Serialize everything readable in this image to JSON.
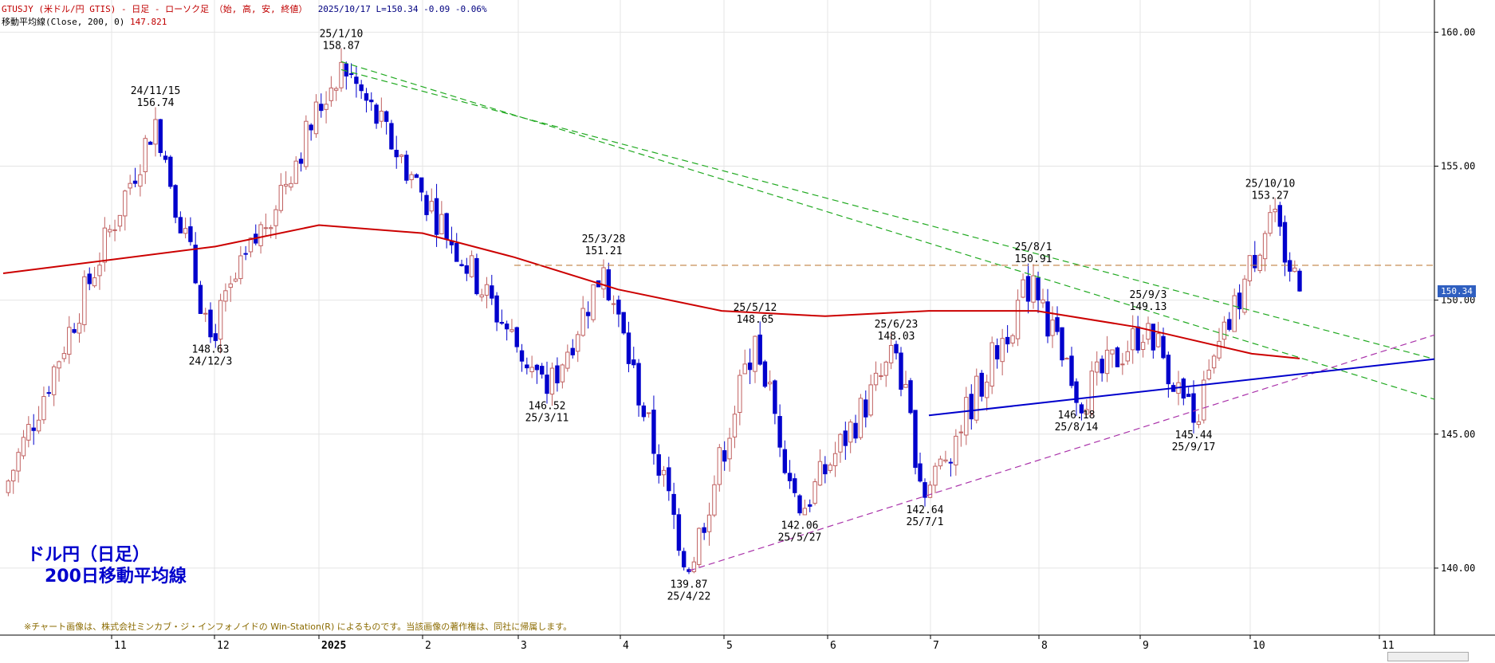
{
  "header": {
    "symbol_line": "GTUSJY (米ドル/円 GTIS) - 日足 - ローソク足 （始, 高, 安, 終値）",
    "date": "2025/10/17",
    "last": "L=150.34",
    "change": "-0.09",
    "change_pct": "-0.06%",
    "ma_label": "移動平均線(Close, 200, 0)",
    "ma_value": "147.821"
  },
  "caption": {
    "line1": "ドル円（日足）",
    "line2": "　200日移動平均線"
  },
  "copyright": "※チャート画像は、株式会社ミンカブ・ジ・インフォノイドの Win-Station(R) によるものです。当該画像の著作権は、同社に帰属します。",
  "price_tag": "150.34",
  "chart_data": {
    "type": "candlestick",
    "title": "ドル円（日足） 200日移動平均線",
    "y_axis": {
      "ticks": [
        140.0,
        145.0,
        150.0,
        155.0,
        160.0
      ],
      "range": [
        137.5,
        161.2
      ],
      "side": "right"
    },
    "x_axis": {
      "labels": [
        "11",
        "12",
        "2025",
        "2",
        "3",
        "4",
        "5",
        "6",
        "7",
        "8",
        "9",
        "10",
        "11"
      ]
    },
    "grid": true,
    "colors": {
      "up": "#c06060",
      "down": "#0000cc",
      "ma200": "#cc0000",
      "triangle_support": "#0000cc",
      "down_trend": "#22aa22",
      "up_trend": "#aa33aa",
      "resistance": "#c08040"
    },
    "annotations": [
      {
        "date": "24/11/15",
        "value": "156.74",
        "type": "high"
      },
      {
        "date": "24/12/3",
        "value": "148.63",
        "type": "low"
      },
      {
        "date": "25/1/10",
        "value": "158.87",
        "type": "high"
      },
      {
        "date": "25/3/11",
        "value": "146.52",
        "type": "low"
      },
      {
        "date": "25/3/28",
        "value": "151.21",
        "type": "high"
      },
      {
        "date": "25/4/22",
        "value": "139.87",
        "type": "low"
      },
      {
        "date": "25/5/12",
        "value": "148.65",
        "type": "high"
      },
      {
        "date": "25/5/27",
        "value": "142.06",
        "type": "low"
      },
      {
        "date": "25/6/23",
        "value": "148.03",
        "type": "high"
      },
      {
        "date": "25/7/1",
        "value": "142.64",
        "type": "low"
      },
      {
        "date": "25/8/1",
        "value": "150.91",
        "type": "high"
      },
      {
        "date": "25/8/14",
        "value": "146.18",
        "type": "low"
      },
      {
        "date": "25/9/3",
        "value": "149.13",
        "type": "high"
      },
      {
        "date": "25/9/17",
        "value": "145.44",
        "type": "low"
      },
      {
        "date": "25/10/10",
        "value": "153.27",
        "type": "high"
      }
    ],
    "key_points": [
      {
        "label": "start",
        "value": 142.8
      },
      {
        "label": "24/11/15",
        "value": 156.74
      },
      {
        "label": "24/12/3",
        "value": 148.63
      },
      {
        "label": "25/1/10",
        "value": 158.87
      },
      {
        "label": "25/3/11",
        "value": 146.52
      },
      {
        "label": "25/3/28",
        "value": 151.21
      },
      {
        "label": "25/4/22",
        "value": 139.87
      },
      {
        "label": "25/5/12",
        "value": 148.65
      },
      {
        "label": "25/5/27",
        "value": 142.06
      },
      {
        "label": "25/6/23",
        "value": 148.03
      },
      {
        "label": "25/7/1",
        "value": 142.64
      },
      {
        "label": "25/8/1",
        "value": 150.91
      },
      {
        "label": "25/8/14",
        "value": 146.18
      },
      {
        "label": "25/9/3",
        "value": 149.13
      },
      {
        "label": "25/9/17",
        "value": 145.44
      },
      {
        "label": "25/10/10",
        "value": 153.27
      },
      {
        "label": "2025/10/17",
        "value": 150.34
      }
    ],
    "ma200": [
      {
        "label": "start",
        "value": 151.0
      },
      {
        "label": "24/12",
        "value": 152.0
      },
      {
        "label": "25/1",
        "value": 152.8
      },
      {
        "label": "25/2",
        "value": 152.5
      },
      {
        "label": "25/3",
        "value": 151.6
      },
      {
        "label": "25/4",
        "value": 150.4
      },
      {
        "label": "25/5",
        "value": 149.6
      },
      {
        "label": "25/6",
        "value": 149.4
      },
      {
        "label": "25/7",
        "value": 149.6
      },
      {
        "label": "25/8",
        "value": 149.6
      },
      {
        "label": "25/9",
        "value": 149.0
      },
      {
        "label": "25/10",
        "value": 148.0
      },
      {
        "label": "2025/10/17",
        "value": 147.821
      }
    ],
    "trendlines": [
      {
        "name": "down-trend-1",
        "style": "dashed",
        "color": "#22aa22",
        "from": {
          "label": "25/1/10",
          "value": 158.9
        },
        "to": {
          "label": "end",
          "value": 146.3
        }
      },
      {
        "name": "down-trend-2",
        "style": "dashed",
        "color": "#22aa22",
        "from": {
          "label": "25/1/10",
          "value": 158.6
        },
        "to": {
          "label": "end",
          "value": 147.8
        }
      },
      {
        "name": "up-trend",
        "style": "dashed",
        "color": "#aa33aa",
        "from": {
          "label": "25/4/22",
          "value": 139.9
        },
        "to": {
          "label": "end",
          "value": 148.7
        }
      },
      {
        "name": "support",
        "style": "solid",
        "color": "#0000cc",
        "from": {
          "label": "25/7",
          "value": 145.7
        },
        "to": {
          "label": "end",
          "value": 147.8
        }
      },
      {
        "name": "resistance-151",
        "style": "dashed",
        "color": "#c08040",
        "from": {
          "label": "25/3",
          "value": 151.3
        },
        "to": {
          "label": "end",
          "value": 151.3
        }
      }
    ]
  }
}
